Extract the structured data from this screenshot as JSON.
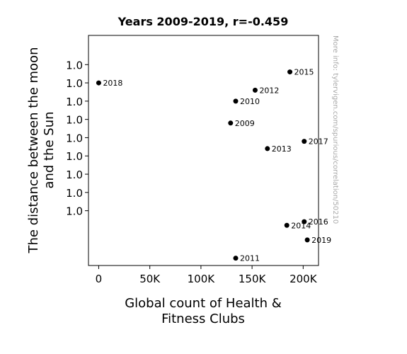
{
  "chart_data": {
    "type": "scatter",
    "title": "Years 2009-2019, r=-0.459",
    "xlabel_lines": [
      "Global count of Health &",
      "Fitness Clubs"
    ],
    "ylabel_lines": [
      "The distance between the moon",
      "and the Sun"
    ],
    "watermark": "More info: tylervigen.com/spurious/correlation/50210",
    "xlim": [
      -10000,
      215000
    ],
    "ylim": [
      0.99945,
      1.00008
    ],
    "x_ticks": [
      {
        "value": 0,
        "label": "0"
      },
      {
        "value": 50000,
        "label": "50K"
      },
      {
        "value": 100000,
        "label": "100K"
      },
      {
        "value": 150000,
        "label": "150K"
      },
      {
        "value": 200000,
        "label": "200K"
      }
    ],
    "y_ticks": [
      {
        "value": 1.0,
        "label": "1.0"
      },
      {
        "value": 0.99995,
        "label": "1.0"
      },
      {
        "value": 0.9999,
        "label": "1.0"
      },
      {
        "value": 0.99985,
        "label": "1.0"
      },
      {
        "value": 0.9998,
        "label": "1.0"
      },
      {
        "value": 0.99975,
        "label": "1.0"
      },
      {
        "value": 0.9997,
        "label": "1.0"
      },
      {
        "value": 0.99965,
        "label": "1.0"
      },
      {
        "value": 0.9996,
        "label": "1.0"
      }
    ],
    "grid": false,
    "point_color": "#000000",
    "points": [
      {
        "label": "2009",
        "x": 129000,
        "y": 0.99984
      },
      {
        "label": "2010",
        "x": 134000,
        "y": 0.9999
      },
      {
        "label": "2011",
        "x": 134000,
        "y": 0.99947
      },
      {
        "label": "2012",
        "x": 153000,
        "y": 0.99993
      },
      {
        "label": "2013",
        "x": 165000,
        "y": 0.99977
      },
      {
        "label": "2014",
        "x": 184000,
        "y": 0.99956
      },
      {
        "label": "2015",
        "x": 187000,
        "y": 0.99998
      },
      {
        "label": "2016",
        "x": 201000,
        "y": 0.99957
      },
      {
        "label": "2017",
        "x": 201000,
        "y": 0.99979
      },
      {
        "label": "2018",
        "x": 0,
        "y": 0.99995
      },
      {
        "label": "2019",
        "x": 204000,
        "y": 0.99952
      }
    ]
  }
}
